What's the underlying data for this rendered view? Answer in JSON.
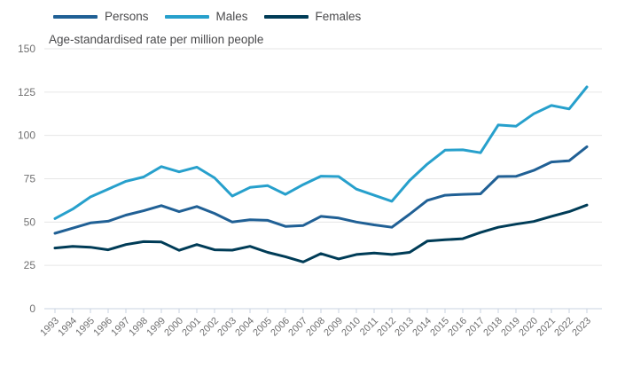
{
  "legend": {
    "items": [
      {
        "label": "Persons",
        "color": "#206095"
      },
      {
        "label": "Males",
        "color": "#27A0CC"
      },
      {
        "label": "Females",
        "color": "#003C57"
      }
    ]
  },
  "chart_data": {
    "type": "line",
    "title": "Age-standardised rate per million people",
    "xlabel": "",
    "ylabel": "Age-standardised rate per million people",
    "x": [
      1993,
      1994,
      1995,
      1996,
      1997,
      1998,
      1999,
      2000,
      2001,
      2002,
      2003,
      2004,
      2005,
      2006,
      2007,
      2008,
      2009,
      2010,
      2011,
      2012,
      2013,
      2014,
      2015,
      2016,
      2017,
      2018,
      2019,
      2020,
      2021,
      2022,
      2023
    ],
    "series": [
      {
        "name": "Persons",
        "color": "#206095",
        "values": [
          43.5,
          46.5,
          49.5,
          50.5,
          54,
          56.5,
          59.5,
          56,
          59,
          55,
          50,
          51.3,
          51,
          47.5,
          48,
          53.3,
          52.3,
          50,
          48.4,
          47,
          54.5,
          62.5,
          65.5,
          66,
          66.3,
          76.3,
          76.4,
          79.8,
          84.7,
          85.4,
          93.5
        ]
      },
      {
        "name": "Males",
        "color": "#27A0CC",
        "values": [
          52,
          57.5,
          64.5,
          69,
          73.5,
          76,
          82,
          79,
          81.7,
          75.5,
          65,
          70,
          71,
          66,
          71.6,
          76.5,
          76.3,
          69,
          65.5,
          62,
          74,
          83.5,
          91.5,
          91.7,
          90,
          106,
          105.3,
          112.5,
          117.3,
          115.3,
          128
        ]
      },
      {
        "name": "Females",
        "color": "#003C57",
        "values": [
          35,
          36,
          35.5,
          34,
          37,
          38.7,
          38.5,
          33.7,
          37,
          34,
          33.8,
          36,
          32.5,
          30,
          27,
          31.8,
          28.7,
          31.3,
          32.1,
          31.3,
          32.5,
          39,
          39.8,
          40.4,
          44,
          47,
          48.8,
          50.3,
          53.3,
          56,
          59.8
        ]
      }
    ],
    "ylim": [
      0,
      150
    ],
    "yticks": [
      0,
      25,
      50,
      75,
      100,
      125,
      150
    ],
    "grid": "horizontal",
    "legend_position": "top-left",
    "style": {
      "grid_color": "#e6e6e6",
      "axis_tick_color": "#c9d3e0",
      "tick_label_color": "#707071",
      "text_color": "#4a4a4c",
      "background": "#ffffff"
    }
  }
}
